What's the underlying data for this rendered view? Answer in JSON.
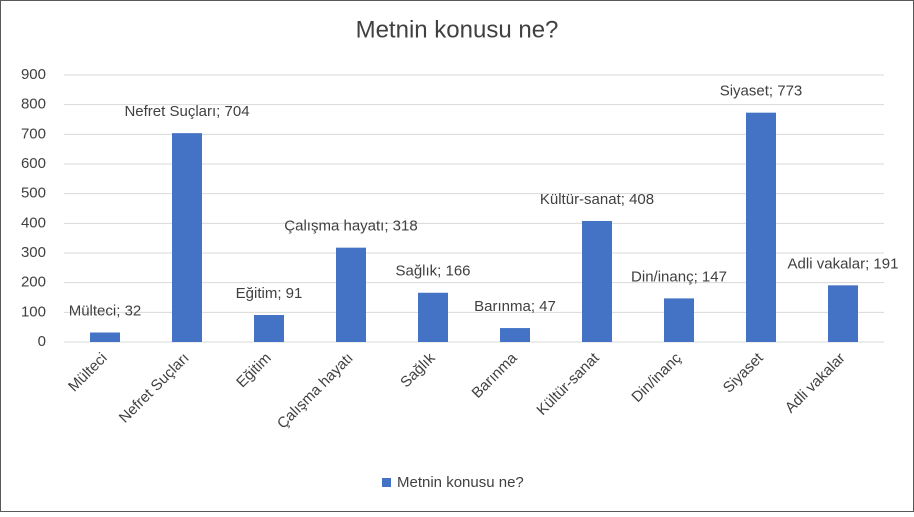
{
  "chart_data": {
    "type": "bar",
    "title": "Metnin konusu ne?",
    "categories": [
      "Mülteci",
      "Nefret Suçları",
      "Eğitim",
      "Çalışma hayatı",
      "Sağlık",
      "Barınma",
      "Kültür-sanat",
      "Din/inanç",
      "Siyaset",
      "Adli vakalar"
    ],
    "series": [
      {
        "name": "Metnin konusu ne?",
        "color": "#4472c4",
        "values": [
          32,
          704,
          91,
          318,
          166,
          47,
          408,
          147,
          773,
          191
        ],
        "value_labels": [
          "Mülteci; 32",
          "Nefret Suçları; 704",
          "Eğitim; 91",
          "Çalışma hayatı; 318",
          "Sağlık; 166",
          "Barınma; 47",
          "Kültür-sanat; 408",
          "Din/inanç; 147",
          "Siyaset; 773",
          "Adli vakalar; 191"
        ]
      }
    ],
    "ylim": [
      0,
      900
    ],
    "yticks": [
      0,
      100,
      200,
      300,
      400,
      500,
      600,
      700,
      800,
      900
    ],
    "grid": true,
    "legend": "bottom"
  }
}
